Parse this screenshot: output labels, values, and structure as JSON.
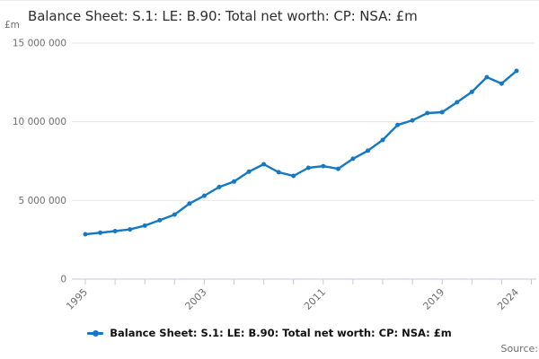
{
  "header": {
    "title": "Balance Sheet: S.1: LE: B.90: Total net worth: CP: NSA: £m",
    "unit_label": "£m"
  },
  "legend": {
    "label": "Balance Sheet: S.1: LE: B.90: Total net worth: CP: NSA: £m",
    "marker_icon": "line-dot-icon"
  },
  "footer": {
    "source_label": "Source:"
  },
  "colors": {
    "series_line": "#1478c3",
    "gridline": "#e6e6e6",
    "axis": "#bfcadd",
    "tick_text": "#6e6e6e",
    "title_text": "#2e2e2e",
    "legend_text": "#111111",
    "background": "#ffffff"
  },
  "chart_data": {
    "type": "line",
    "title": "Balance Sheet: S.1: LE: B.90: Total net worth: CP: NSA: £m",
    "xlabel": "",
    "ylabel": "£m",
    "x": [
      1995,
      1996,
      1997,
      1998,
      1999,
      2000,
      2001,
      2002,
      2003,
      2004,
      2005,
      2006,
      2007,
      2008,
      2009,
      2010,
      2011,
      2012,
      2013,
      2014,
      2015,
      2016,
      2017,
      2018,
      2019,
      2020,
      2021,
      2022,
      2023,
      2024
    ],
    "values": [
      2850000,
      2950000,
      3050000,
      3160000,
      3400000,
      3740000,
      4100000,
      4800000,
      5300000,
      5850000,
      6200000,
      6830000,
      7300000,
      6790000,
      6560000,
      7070000,
      7180000,
      7010000,
      7650000,
      8160000,
      8840000,
      9800000,
      10090000,
      10550000,
      10610000,
      11240000,
      11900000,
      12830000,
      12430000,
      13230000
    ],
    "ylim": [
      0,
      15000000
    ],
    "yticks": [
      {
        "value": 0,
        "label": "0"
      },
      {
        "value": 5000000,
        "label": "5 000 000"
      },
      {
        "value": 10000000,
        "label": "10 000 000"
      },
      {
        "value": 15000000,
        "label": "15 000 000"
      }
    ],
    "xtick_minor_years": [
      1995,
      1997,
      1999,
      2001,
      2003,
      2005,
      2007,
      2009,
      2011,
      2013,
      2015,
      2017,
      2019,
      2021,
      2023,
      2025
    ],
    "xtick_labeled_years": [
      1995,
      2003,
      2011,
      2019,
      2024
    ],
    "grid": "horizontal",
    "legend_position": "bottom",
    "marker": "dot"
  }
}
